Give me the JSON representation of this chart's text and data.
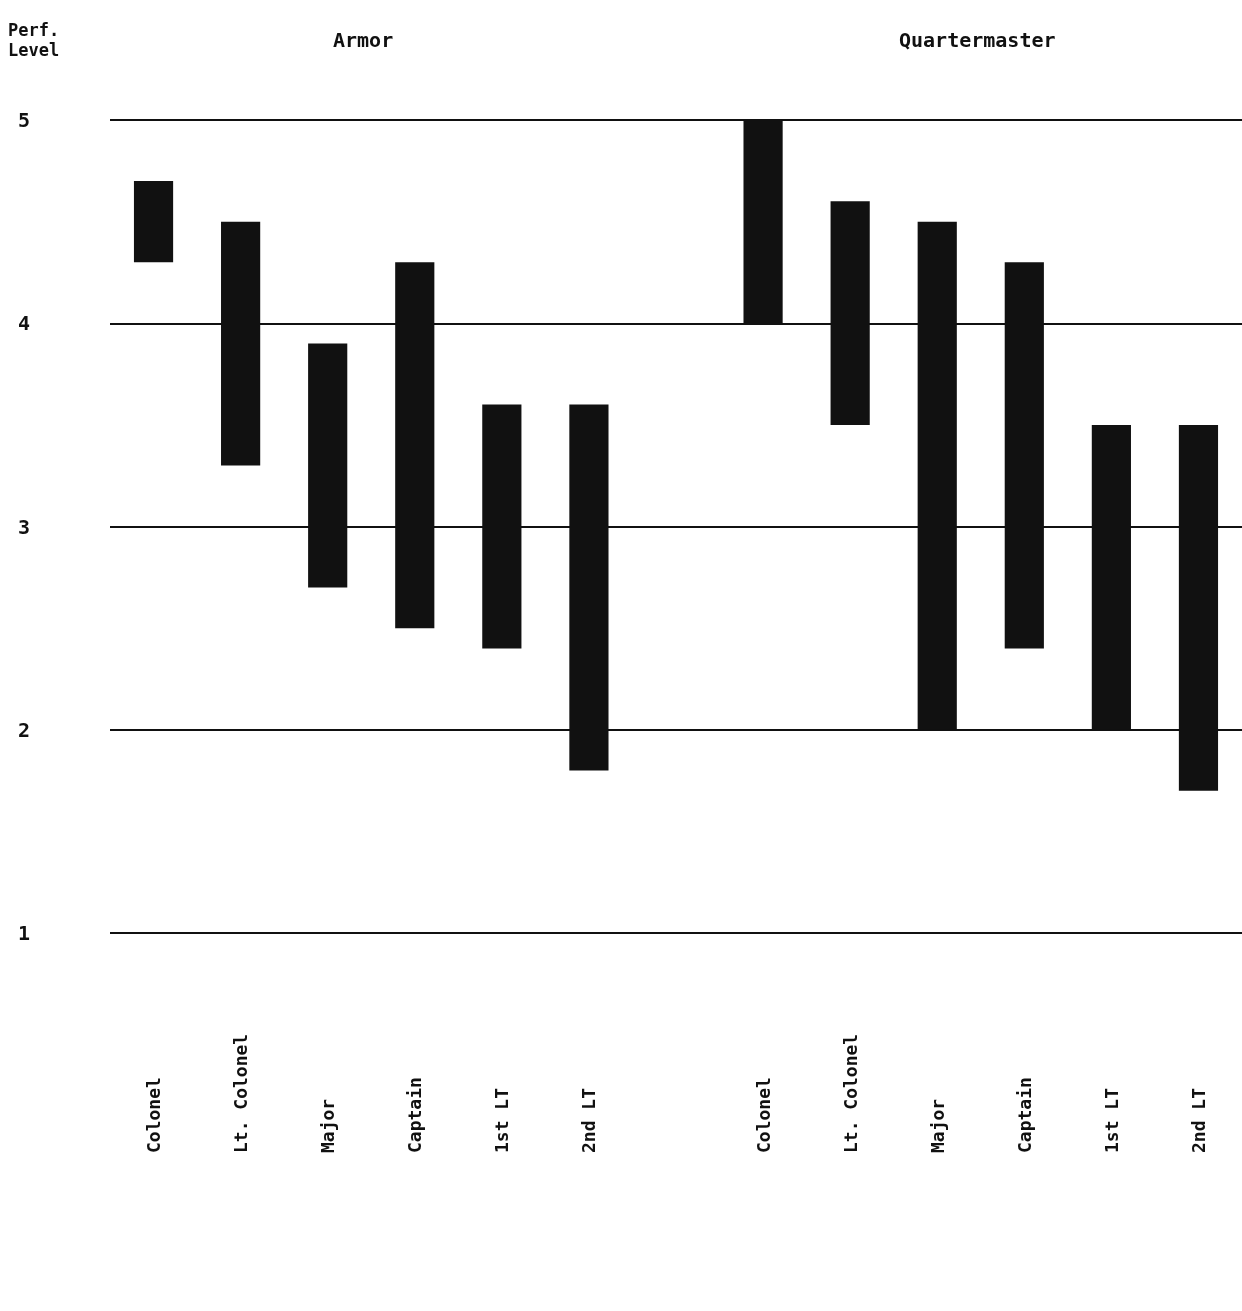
{
  "chart_data": {
    "type": "bar",
    "ylabel": "Perf. Level",
    "annotations": [
      "Armor",
      "Quartermaster"
    ],
    "categories": [
      "Colonel",
      "Lt. Colonel",
      "Major",
      "Captain",
      "1st LT",
      "2nd LT",
      null,
      "Colonel",
      "Lt. Colonel",
      "Major",
      "Captain",
      "1st LT",
      "2nd LT"
    ],
    "values": [
      0.4,
      1.2,
      1.2,
      1.8,
      1.2,
      1.8,
      null,
      1,
      1.1,
      2.5,
      1.9,
      1.5,
      1.8
    ],
    "base": [
      4.3,
      3.3,
      2.7,
      2.5,
      2.4,
      1.8,
      null,
      4,
      3.5,
      2,
      2.4,
      2,
      1.7
    ],
    "color": "#111111",
    "ylim": [
      1,
      5
    ],
    "yticks": [
      1,
      2,
      3,
      4,
      5
    ],
    "grid": "y"
  }
}
